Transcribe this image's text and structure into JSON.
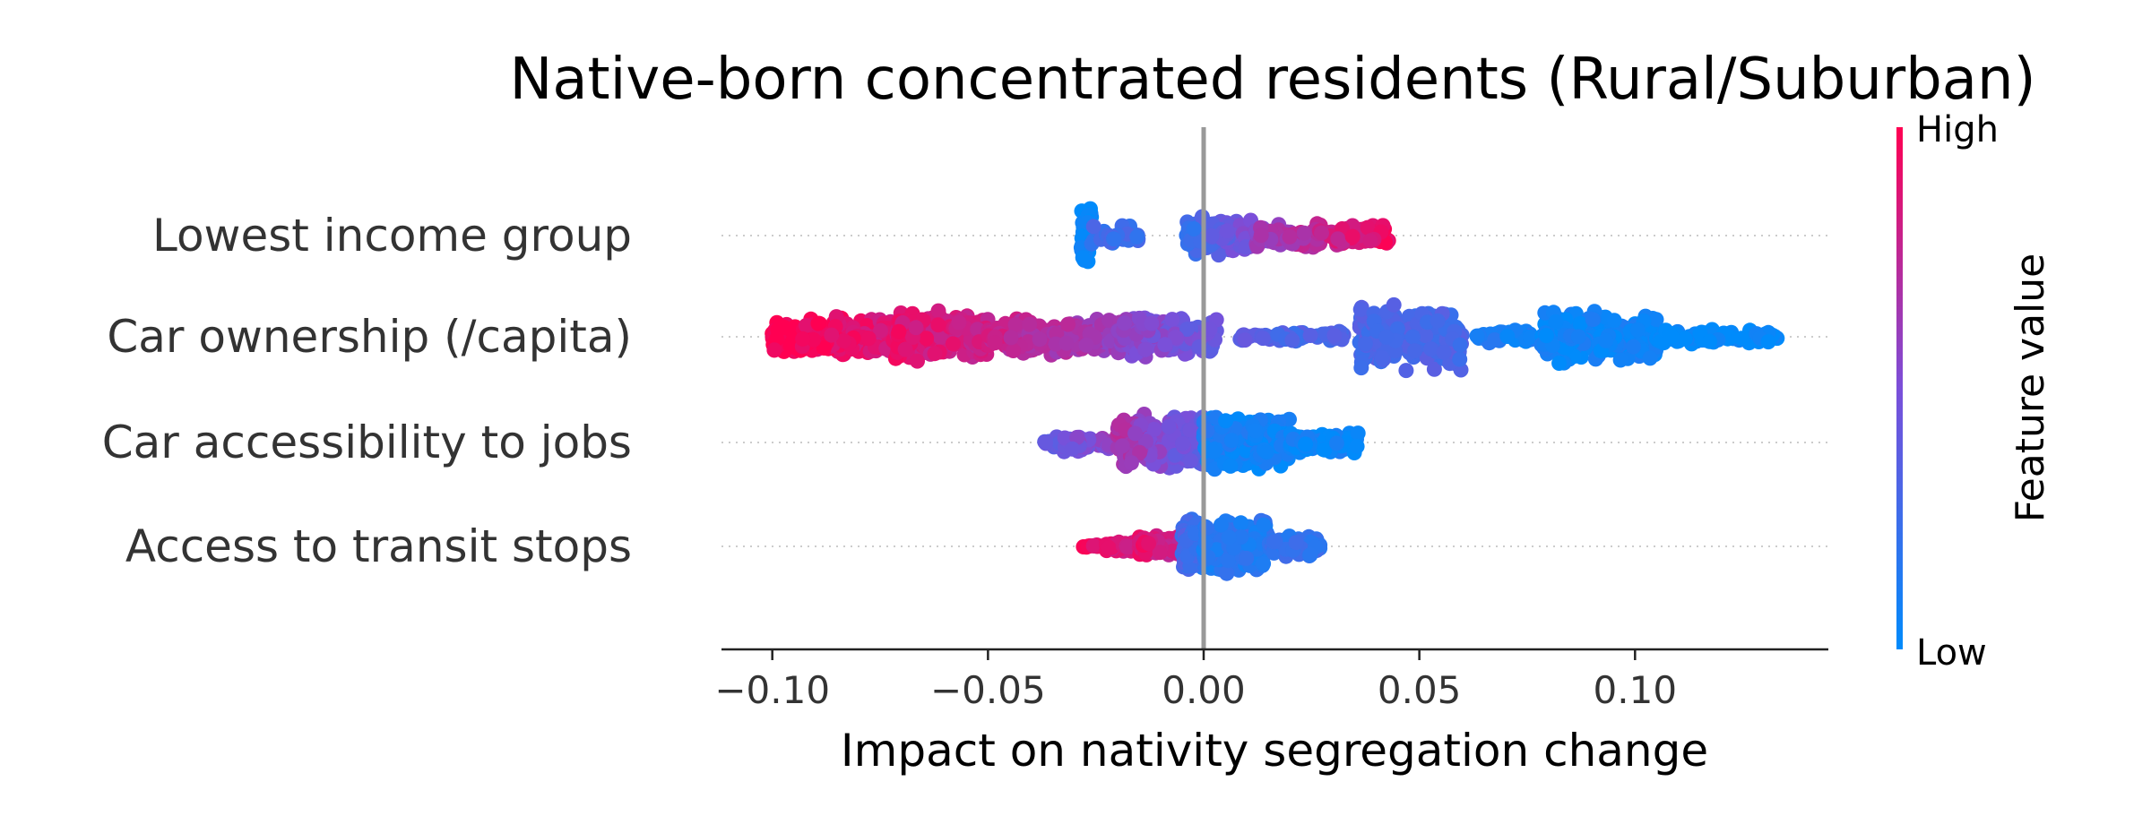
{
  "chart_data": {
    "type": "scatter",
    "subtype": "beeswarm",
    "title": "Native-born concentrated residents (Rural/Suburban)",
    "xlabel": "Impact on nativity segregation change",
    "ylabel": "",
    "xlim": [
      -0.112,
      0.144
    ],
    "xticks": [
      {
        "value": -0.1,
        "label": "−0.10"
      },
      {
        "value": -0.05,
        "label": "−0.05"
      },
      {
        "value": 0.0,
        "label": "0.00"
      },
      {
        "value": 0.05,
        "label": "0.05"
      },
      {
        "value": 0.1,
        "label": "0.10"
      }
    ],
    "grid": false,
    "colorbar": {
      "title": "Feature value",
      "high_label": "High",
      "low_label": "Low",
      "high_color": "#ff0052",
      "low_color": "#008bfb"
    },
    "features": [
      {
        "name": "Lowest income group",
        "clusters": [
          {
            "x0": -0.0285,
            "x1": -0.026,
            "v0": 0.0,
            "v1": 0.0,
            "n": 60,
            "spread": 1.0
          },
          {
            "x0": -0.026,
            "x1": -0.015,
            "v0": 0.25,
            "v1": 0.25,
            "n": 30,
            "spread": 0.3
          },
          {
            "x0": -0.004,
            "x1": 0.012,
            "v0": 0.2,
            "v1": 0.55,
            "n": 120,
            "spread": 0.55
          },
          {
            "x0": 0.012,
            "x1": 0.043,
            "v0": 0.6,
            "v1": 0.95,
            "n": 140,
            "spread": 0.35
          }
        ]
      },
      {
        "name": "Car ownership (/capita)",
        "clusters": [
          {
            "x0": -0.1,
            "x1": -0.072,
            "v0": 1.0,
            "v1": 0.85,
            "n": 220,
            "spread": 0.55
          },
          {
            "x0": -0.072,
            "x1": -0.05,
            "v0": 0.9,
            "v1": 0.8,
            "n": 220,
            "spread": 0.7
          },
          {
            "x0": -0.05,
            "x1": -0.02,
            "v0": 0.8,
            "v1": 0.6,
            "n": 200,
            "spread": 0.5
          },
          {
            "x0": -0.02,
            "x1": 0.003,
            "v0": 0.6,
            "v1": 0.4,
            "n": 160,
            "spread": 0.55
          },
          {
            "x0": 0.007,
            "x1": 0.016,
            "v0": 0.35,
            "v1": 0.35,
            "n": 18,
            "spread": 0.1
          },
          {
            "x0": 0.017,
            "x1": 0.033,
            "v0": 0.3,
            "v1": 0.3,
            "n": 30,
            "spread": 0.15
          },
          {
            "x0": 0.036,
            "x1": 0.06,
            "v0": 0.3,
            "v1": 0.3,
            "n": 170,
            "spread": 1.0
          },
          {
            "x0": 0.063,
            "x1": 0.078,
            "v0": 0.1,
            "v1": 0.1,
            "n": 40,
            "spread": 0.2
          },
          {
            "x0": 0.078,
            "x1": 0.105,
            "v0": 0.05,
            "v1": 0.05,
            "n": 200,
            "spread": 0.75
          },
          {
            "x0": 0.105,
            "x1": 0.133,
            "v0": 0.0,
            "v1": 0.0,
            "n": 80,
            "spread": 0.2
          }
        ]
      },
      {
        "name": "Car accessibility to jobs",
        "clusters": [
          {
            "x0": -0.037,
            "x1": -0.02,
            "v0": 0.4,
            "v1": 0.6,
            "n": 60,
            "spread": 0.25
          },
          {
            "x0": -0.02,
            "x1": 0.0,
            "v0": 0.7,
            "v1": 0.35,
            "n": 170,
            "spread": 0.8
          },
          {
            "x0": 0.0,
            "x1": 0.02,
            "v0": 0.1,
            "v1": 0.05,
            "n": 200,
            "spread": 0.8
          },
          {
            "x0": 0.02,
            "x1": 0.036,
            "v0": 0.05,
            "v1": 0.05,
            "n": 70,
            "spread": 0.35
          }
        ]
      },
      {
        "name": "Access to transit stops",
        "clusters": [
          {
            "x0": -0.028,
            "x1": -0.024,
            "v0": 0.95,
            "v1": 0.9,
            "n": 10,
            "spread": 0.05
          },
          {
            "x0": -0.023,
            "x1": -0.015,
            "v0": 0.85,
            "v1": 0.85,
            "n": 40,
            "spread": 0.15
          },
          {
            "x0": -0.015,
            "x1": -0.005,
            "v0": 0.9,
            "v1": 0.75,
            "n": 140,
            "spread": 0.3
          },
          {
            "x0": -0.005,
            "x1": 0.0,
            "v0": 0.3,
            "v1": 0.2,
            "n": 120,
            "spread": 0.8
          },
          {
            "x0": 0.0,
            "x1": 0.015,
            "v0": 0.15,
            "v1": 0.15,
            "n": 150,
            "spread": 0.75
          },
          {
            "x0": 0.015,
            "x1": 0.027,
            "v0": 0.2,
            "v1": 0.2,
            "n": 60,
            "spread": 0.3
          }
        ]
      }
    ]
  }
}
